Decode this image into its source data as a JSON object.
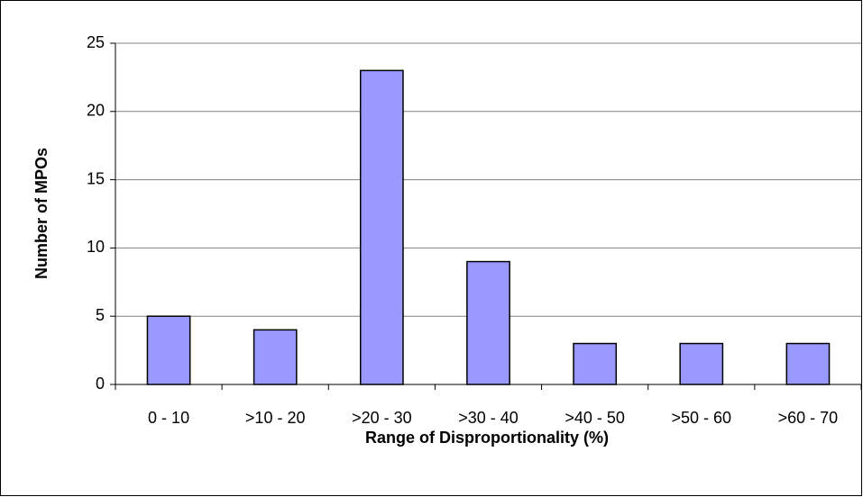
{
  "chart_data": {
    "type": "bar",
    "categories": [
      "0 - 10",
      ">10 - 20",
      ">20 - 30",
      ">30 - 40",
      ">40 - 50",
      ">50 - 60",
      ">60 - 70"
    ],
    "values": [
      5,
      4,
      23,
      9,
      3,
      3,
      3
    ],
    "color": "#9999ff",
    "x_label": "Range of Disproportionality (%)",
    "y_label": "Number of MPOs",
    "ylim": [
      0,
      25
    ],
    "yticks": [
      0,
      5,
      10,
      15,
      20,
      25
    ],
    "grid": true
  }
}
